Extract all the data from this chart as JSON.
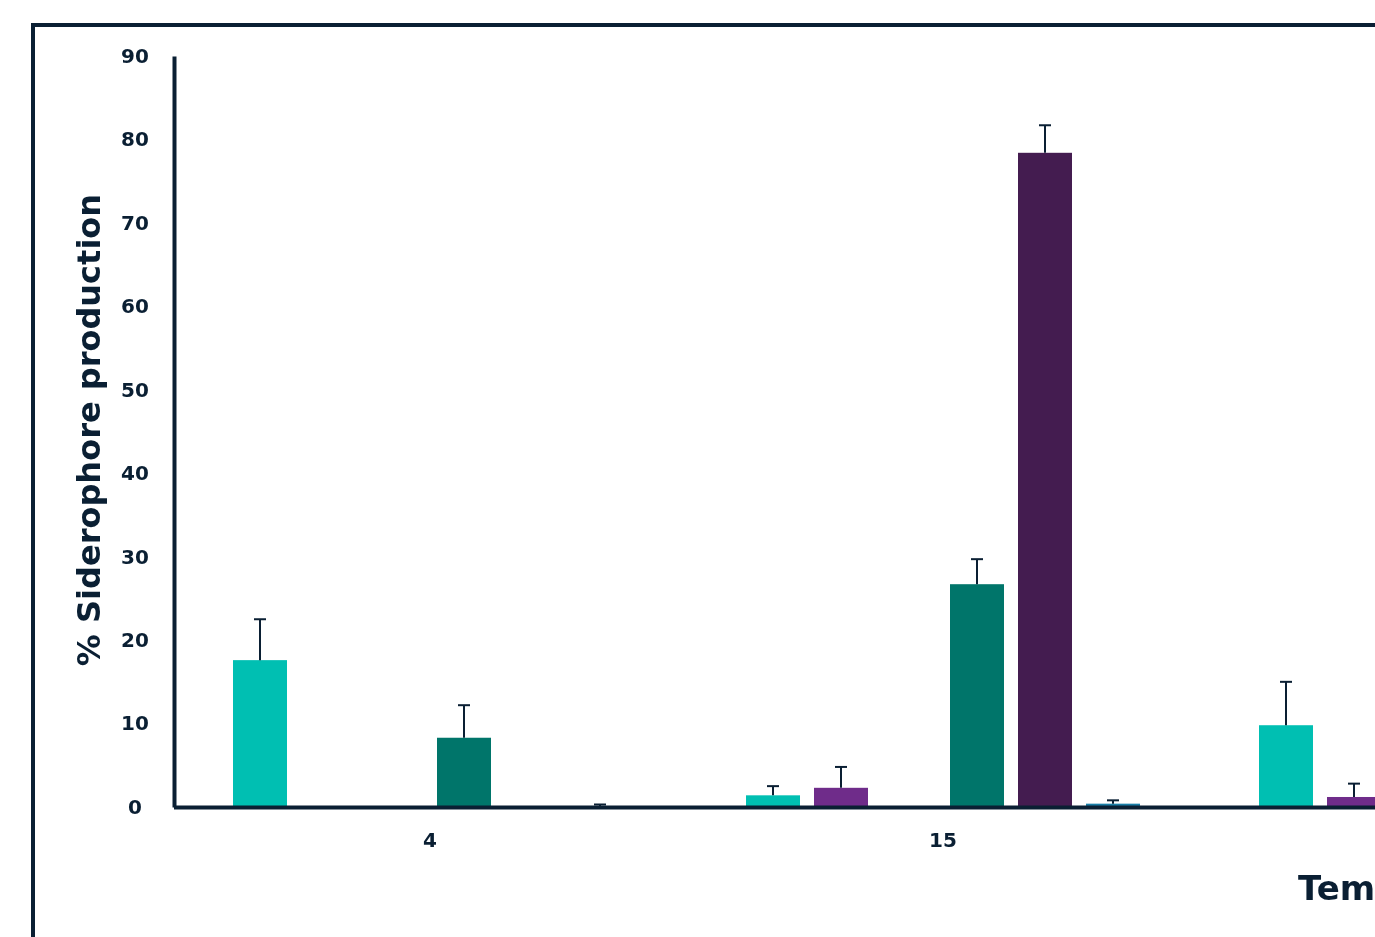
{
  "chart_data": {
    "type": "bar",
    "ylabel": "% Siderophore production",
    "xlabel": "Tem",
    "categories": [
      "4",
      "15",
      null
    ],
    "ylim": [
      0,
      90
    ],
    "yticks": [
      0,
      10,
      20,
      30,
      40,
      50,
      60,
      70,
      80,
      90
    ],
    "grid": false,
    "series": [
      {
        "color": "#00bfb2",
        "values": [
          17.6,
          1.4,
          9.8
        ],
        "errors": [
          [
            17.6,
            22.5
          ],
          [
            1.4,
            2.5
          ],
          [
            9.8,
            15.0
          ]
        ]
      },
      {
        "color": "#6f2c8a",
        "values": [
          null,
          2.3,
          1.2
        ],
        "errors": [
          null,
          [
            2.3,
            4.8
          ],
          [
            1.2,
            2.8
          ]
        ]
      },
      {
        "values": [
          null,
          null,
          null
        ]
      },
      {
        "color": "#00756a",
        "values": [
          8.3,
          26.7,
          null
        ],
        "errors": [
          [
            8.3,
            12.2
          ],
          [
            26.7,
            29.7
          ],
          null
        ]
      },
      {
        "color": "#441c50",
        "values": [
          null,
          78.4,
          null
        ],
        "errors": [
          null,
          [
            78.4,
            81.7
          ],
          null
        ]
      },
      {
        "color": "#1a7fa8",
        "values": [
          0.1,
          0.4,
          null
        ],
        "errors": [
          [
            0.1,
            0.3
          ],
          [
            0.4,
            0.8
          ],
          null
        ]
      }
    ]
  }
}
